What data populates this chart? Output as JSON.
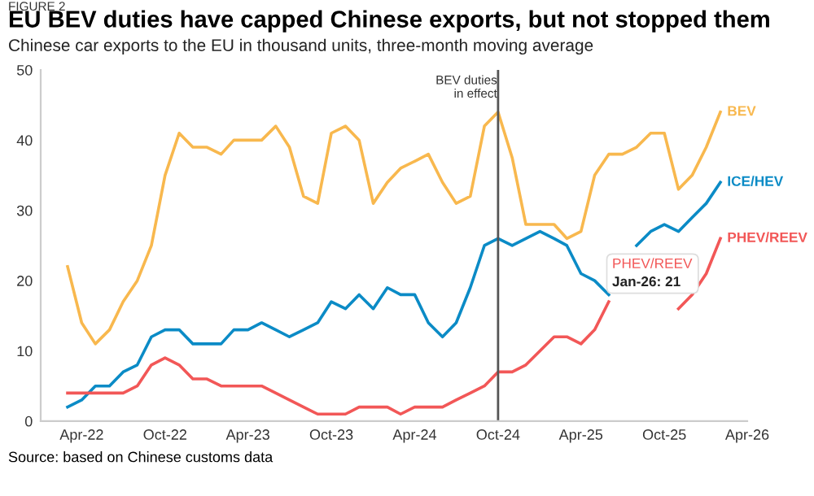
{
  "chart_data": {
    "type": "line",
    "title": "EU BEV duties have capped Chinese exports, but not stopped them",
    "subtitle": "Chinese car exports to the EU in thousand units, three-month moving average",
    "x": [
      "2022-03",
      "2022-04",
      "2022-05",
      "2022-06",
      "2022-07",
      "2022-08",
      "2022-09",
      "2022-10",
      "2022-11",
      "2022-12",
      "2023-01",
      "2023-02",
      "2023-03",
      "2023-04",
      "2023-05",
      "2023-06",
      "2023-07",
      "2023-08",
      "2023-09",
      "2023-10",
      "2023-11",
      "2023-12",
      "2024-01",
      "2024-02",
      "2024-03",
      "2024-04",
      "2024-05",
      "2024-06",
      "2024-07",
      "2024-08",
      "2024-09",
      "2024-10",
      "2024-11",
      "2024-12",
      "2025-01",
      "2025-02",
      "2025-03",
      "2025-04",
      "2025-05",
      "2025-06",
      "2025-07",
      "2025-08",
      "2025-09",
      "2025-10",
      "2025-11",
      "2025-12",
      "2026-01",
      "2026-02"
    ],
    "series": [
      {
        "name": "BEV",
        "color": "#f8b84e",
        "values": [
          22,
          14,
          11,
          13,
          17,
          20,
          25,
          35,
          41,
          39,
          39,
          38,
          40,
          40,
          40,
          42,
          39,
          32,
          31,
          41,
          42,
          40,
          31,
          34,
          36,
          37,
          38,
          34,
          31,
          32,
          42,
          44,
          37.5,
          28,
          28,
          28,
          26,
          27,
          35,
          38,
          38,
          39,
          41,
          41,
          33,
          35,
          39,
          44
        ]
      },
      {
        "name": "ICE/HEV",
        "color": "#0b8bc6",
        "values": [
          2,
          3,
          5,
          5,
          7,
          8,
          12,
          13,
          13,
          11,
          11,
          11,
          13,
          13,
          14,
          13,
          12,
          13,
          14,
          17,
          16,
          18,
          16,
          19,
          18,
          18,
          14,
          12,
          14,
          19,
          25,
          26,
          25,
          26,
          27,
          26,
          25,
          21,
          20,
          18,
          null,
          25,
          27,
          28,
          27,
          29,
          31,
          34
        ]
      },
      {
        "name": "PHEV/REEV",
        "color": "#f25757",
        "values": [
          4,
          4,
          4,
          4,
          4,
          5,
          8,
          9,
          8,
          6,
          6,
          5,
          5,
          5,
          5,
          4,
          3,
          2,
          1,
          1,
          1,
          2,
          2,
          2,
          1,
          2,
          2,
          2,
          3,
          4,
          5,
          7,
          7,
          8,
          10,
          12,
          12,
          11,
          13,
          17,
          null,
          null,
          null,
          null,
          16,
          18,
          21,
          26
        ]
      }
    ],
    "xlim": [
      "2022-01",
      "2026-04"
    ],
    "xticks": [
      {
        "value": "2022-04",
        "label": "Apr-22"
      },
      {
        "value": "2022-10",
        "label": "Oct-22"
      },
      {
        "value": "2023-04",
        "label": "Apr-23"
      },
      {
        "value": "2023-10",
        "label": "Oct-23"
      },
      {
        "value": "2024-04",
        "label": "Apr-24"
      },
      {
        "value": "2024-10",
        "label": "Oct-24"
      },
      {
        "value": "2025-04",
        "label": "Apr-25"
      },
      {
        "value": "2025-10",
        "label": "Oct-25"
      },
      {
        "value": "2026-04",
        "label": "Apr-26"
      }
    ],
    "ylim": [
      0,
      50
    ],
    "yticks": [
      0,
      10,
      20,
      30,
      40,
      50
    ],
    "grid": false,
    "ref_lines": [
      {
        "axis": "x",
        "value": "2024-10",
        "label": "BEV duties\nin effect",
        "color": "#555555"
      }
    ],
    "annotations": [
      "FIGURE 2",
      {
        "text": "PHEV/REEV\nJan-26: 21",
        "x": "2026-01",
        "y": 21
      },
      "Source: based on Chinese customs data"
    ]
  }
}
